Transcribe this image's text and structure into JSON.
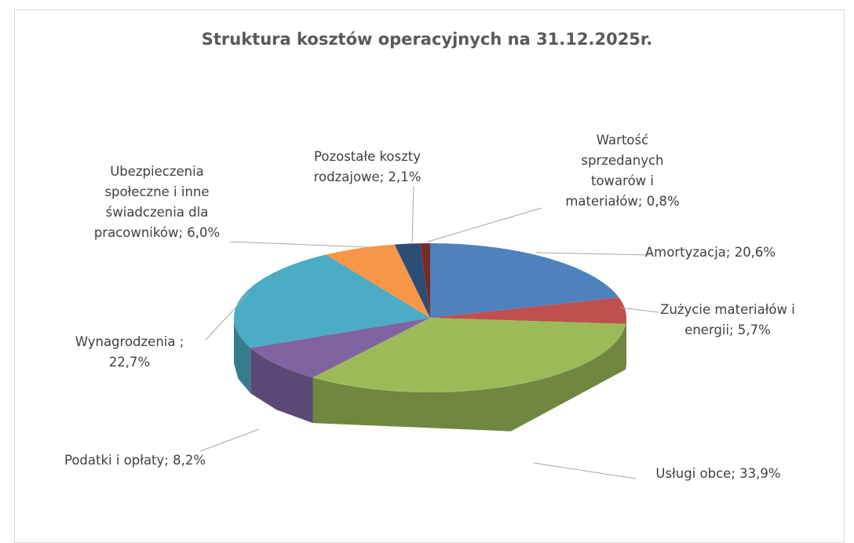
{
  "chart_data": {
    "type": "pie3d",
    "title": "Struktura kosztów operacyjnych na 31.12.2025r.",
    "values": [
      20.6,
      5.7,
      33.9,
      8.2,
      22.7,
      6.0,
      2.1,
      0.8
    ],
    "value_labels": [
      "Amortyzacja; 20,6%",
      "Zużycie materiałów i energii; 5,7%",
      "Usługi obce; 33,9%",
      "Podatki i opłaty; 8,2%",
      "Wynagrodzenia  ; 22,7%",
      "Ubezpieczenia społeczne i inne świadczenia dla pracowników; 6,0%",
      "Pozostałe koszty rodzajowe; 2,1%",
      "Wartość sprzedanych towarów i materiałów; 0,8%"
    ],
    "colors": [
      "#4f81bd",
      "#c0504d",
      "#9bbb59",
      "#8064a2",
      "#4bacc6",
      "#f79646",
      "#2c4d75",
      "#772c2a"
    ]
  }
}
